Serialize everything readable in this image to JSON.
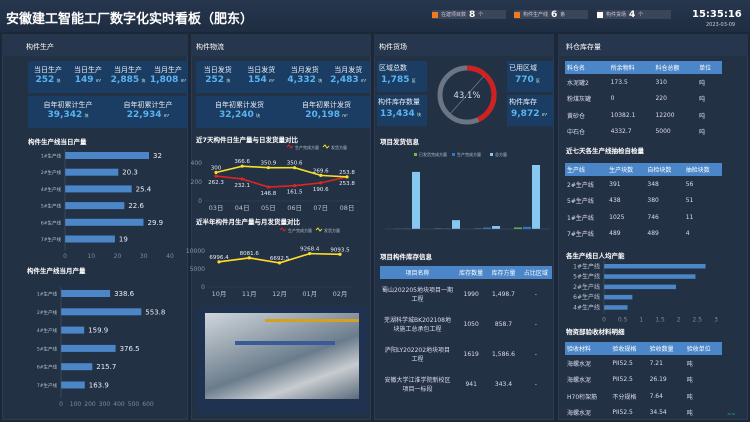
{
  "header": {
    "title": "安徽建工智能工厂数字化实时看板（肥东）",
    "stats": [
      {
        "label": "在建项目数",
        "value": "8",
        "unit": "个",
        "color": "#f07a1e"
      },
      {
        "label": "构件生产线",
        "value": "6",
        "unit": "条",
        "color": "#f07a1e"
      },
      {
        "label": "构件货场",
        "value": "4",
        "unit": "个",
        "color": "#ffffff"
      }
    ],
    "time": "15:35:16",
    "date": "2023-03-09"
  },
  "production": {
    "title": "构件生产",
    "kpis": [
      {
        "label": "当日生产",
        "value": "252",
        "unit": "块"
      },
      {
        "label": "当日生产",
        "value": "149",
        "unit": "m³"
      },
      {
        "label": "当月生产",
        "value": "2,885",
        "unit": "块"
      },
      {
        "label": "当月生产",
        "value": "1,808",
        "unit": "m³"
      }
    ],
    "totals": [
      {
        "label": "自年初累计生产",
        "value": "39,342",
        "unit": "块"
      },
      {
        "label": "自年初累计生产",
        "value": "22,934",
        "unit": "m³"
      }
    ]
  },
  "logistics": {
    "title": "构件物流",
    "kpis": [
      {
        "label": "当日发货",
        "value": "252",
        "unit": "块"
      },
      {
        "label": "当日发货",
        "value": "154",
        "unit": "m³"
      },
      {
        "label": "当月发货",
        "value": "4,332",
        "unit": "块"
      },
      {
        "label": "当月发货",
        "value": "2,483",
        "unit": "m³"
      }
    ],
    "totals": [
      {
        "label": "自年初累计发货",
        "value": "32,240",
        "unit": "块"
      },
      {
        "label": "自年初累计发货",
        "value": "20,198",
        "unit": "m³"
      }
    ]
  },
  "yard": {
    "title": "构件货场",
    "total_area_label": "区域总数",
    "total_area": "1,785",
    "total_area_unit": "区",
    "used_label": "已用区域",
    "used": "770",
    "used_unit": "区",
    "stock_count_label": "构件库存数量",
    "stock_count": "13,434",
    "stock_count_unit": "块",
    "stock_vol_label": "构件库存",
    "stock_vol": "9,872",
    "stock_vol_unit": "m³",
    "usage_percent": 43.1,
    "usage_text": "43.1%"
  },
  "project_table": {
    "title": "项目构件库存信息",
    "headers": [
      "项目名称",
      "库存数量",
      "库存方量",
      "占比区域"
    ],
    "rows": [
      [
        "蜀山202205地块项目一期工程",
        "1990",
        "1,498.7",
        "-"
      ],
      [
        "芜湖科学城BK202108地块施工总承包工程",
        "1050",
        "858.7",
        "-"
      ],
      [
        "庐阳LY202202地块项目工程",
        "1619",
        "1,586.6",
        "-"
      ],
      [
        "安徽大学江淮学院新校区项目一标段",
        "941",
        "343.4",
        "-"
      ]
    ]
  },
  "silo": {
    "title": "料仓库存量",
    "headers": [
      "料仓名",
      "所余物料",
      "料仓总额",
      "单位"
    ],
    "rows": [
      [
        "水泥罐2",
        "173.5",
        "310",
        "吨"
      ],
      [
        "粉煤灰罐",
        "0",
        "220",
        "吨"
      ],
      [
        "黄砂仓",
        "10382.1",
        "12200",
        "吨"
      ],
      [
        "中石仓",
        "4332.7",
        "5000",
        "吨"
      ]
    ]
  },
  "inspect": {
    "title": "近七天各生产线抽检自检量",
    "headers": [
      "生产线",
      "生产块数",
      "自检块数",
      "抽检块数"
    ],
    "rows": [
      [
        "2#生产线",
        "391",
        "348",
        "56"
      ],
      [
        "5#生产线",
        "438",
        "380",
        "51"
      ],
      [
        "1#生产线",
        "1025",
        "746",
        "11"
      ],
      [
        "7#生产线",
        "489",
        "489",
        "4"
      ]
    ]
  },
  "material": {
    "title": "物资部验收材料明细",
    "headers": [
      "验收材料",
      "验收规格",
      "验收数量",
      "验收单位"
    ],
    "rows": [
      [
        "海螺水泥",
        "PII52.5",
        "7.21",
        "吨"
      ],
      [
        "海螺水泥",
        "PII52.5",
        "26.19",
        "吨"
      ],
      [
        "H70桁架筋",
        "不分规格",
        "7.64",
        "吨"
      ],
      [
        "海螺水泥",
        "PII52.5",
        "34.54",
        "吨"
      ]
    ]
  },
  "chart_data": [
    {
      "type": "bar",
      "orientation": "horizontal",
      "title": "构件生产线当日产量",
      "categories": [
        "1#生产线",
        "2#生产线",
        "4#生产线",
        "5#生产线",
        "6#生产线",
        "7#生产线"
      ],
      "values": [
        32,
        20.3,
        25.4,
        22.6,
        29.9,
        19
      ],
      "xlim": [
        0,
        40
      ],
      "ticks": [
        "0",
        "10",
        "20",
        "30",
        "40"
      ],
      "color": "#4a86c8"
    },
    {
      "type": "bar",
      "orientation": "horizontal",
      "title": "构件生产线当月产量",
      "categories": [
        "1#生产线",
        "2#生产线",
        "4#生产线",
        "5#生产线",
        "6#生产线",
        "7#生产线"
      ],
      "values": [
        338.6,
        553.8,
        159.9,
        376.5,
        215.7,
        163.9
      ],
      "xlim": [
        0,
        600
      ],
      "ticks": [
        "0",
        "100",
        "200",
        "300",
        "400",
        "500",
        "600"
      ],
      "color": "#4a86c8"
    },
    {
      "type": "line",
      "title": "近7天构件日生产量与日发货量对比",
      "categories": [
        "03日",
        "04日",
        "05日",
        "06日",
        "07日",
        "08日"
      ],
      "ylim": [
        0,
        400
      ],
      "yticks": [
        "0",
        "200",
        "400"
      ],
      "series": [
        {
          "name": "生产完成方量",
          "color": "#e02424",
          "values": [
            262.3,
            232.1,
            146.8,
            161.5,
            190.6,
            253.8
          ]
        },
        {
          "name": "发货方量",
          "color": "#f5e02a",
          "values": [
            300,
            366.6,
            350.9,
            350.6,
            269.6,
            253.8
          ]
        }
      ]
    },
    {
      "type": "line",
      "title": "近半年构件月生产量与月发货量对比",
      "categories": [
        "10月",
        "11月",
        "12月",
        "01月",
        "02月"
      ],
      "ylim": [
        0,
        10000
      ],
      "yticks": [
        "0",
        "5000",
        "10000"
      ],
      "series": [
        {
          "name": "生产完成方量",
          "color": "#e02424",
          "values": [
            6996.4,
            8081.6,
            6692.5,
            9268.4,
            9093.5
          ]
        },
        {
          "name": "发货方量",
          "color": "#f5e02a",
          "values": [
            6996.4,
            8081.6,
            6692.5,
            9268.4,
            9093.5
          ]
        }
      ]
    },
    {
      "type": "bar",
      "title": "项目发货信息",
      "groups": 4,
      "series": [
        {
          "name": "已发货完成方量",
          "color": "#6ac04a",
          "values": [
            2,
            5,
            5,
            15
          ]
        },
        {
          "name": "生产完成方量",
          "color": "#2f78c8",
          "values": [
            5,
            5,
            15,
            22
          ]
        },
        {
          "name": "总方量",
          "color": "#86c8f0",
          "values": [
            580,
            90,
            30,
            650
          ]
        }
      ]
    },
    {
      "type": "bar",
      "orientation": "horizontal",
      "title": "各生产线日人均产能",
      "categories": [
        "1#生产线",
        "5#生产线",
        "2#生产线",
        "6#生产线",
        "4#生产线"
      ],
      "values": [
        2.72,
        2.45,
        1.93,
        0.76,
        0.63
      ],
      "xlim": [
        0,
        3
      ],
      "ticks": [
        "0",
        "0.5",
        "1",
        "1.5",
        "2",
        "2.5",
        "3"
      ],
      "color": "#4a86c8"
    }
  ]
}
